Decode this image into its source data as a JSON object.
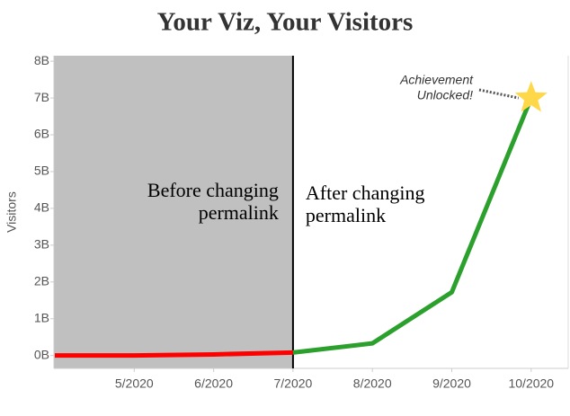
{
  "chart_data": {
    "type": "line",
    "title": "Your Viz, Your Visitors",
    "y_label": "Visitors",
    "categories": [
      null,
      "5/2020",
      "6/2020",
      "7/2020",
      "8/2020",
      "9/2020",
      "10/2020"
    ],
    "series": [
      {
        "color": "#ff0000",
        "values": [
          0,
          0,
          30000000,
          80000000,
          null,
          null,
          null
        ]
      },
      {
        "color": "#2ca02c",
        "values": [
          null,
          null,
          null,
          80000000,
          330000000,
          1720000000,
          7000000000
        ]
      }
    ],
    "ylim": [
      -350000000,
      8150000000
    ],
    "yticks": [
      {
        "value": 0,
        "label": "0B"
      },
      {
        "value": 1000000000,
        "label": "1B"
      },
      {
        "value": 2000000000,
        "label": "2B"
      },
      {
        "value": 3000000000,
        "label": "3B"
      },
      {
        "value": 4000000000,
        "label": "4B"
      },
      {
        "value": 5000000000,
        "label": "5B"
      },
      {
        "value": 6000000000,
        "label": "6B"
      },
      {
        "value": 7000000000,
        "label": "7B"
      },
      {
        "value": 8000000000,
        "label": "8B"
      }
    ],
    "annotations": {
      "before": [
        "Before changing",
        "permalink"
      ],
      "after": [
        "After changing",
        "permalink"
      ],
      "achievement": [
        "Achievement",
        "Unlocked!"
      ]
    },
    "star_color": "#ffd84a"
  }
}
